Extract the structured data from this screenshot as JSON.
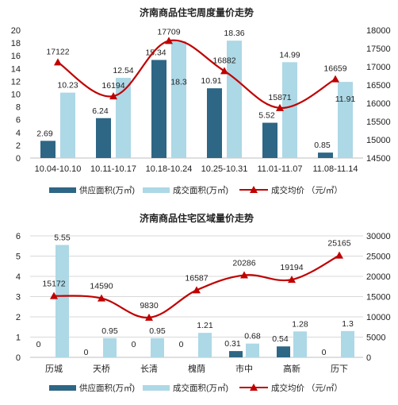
{
  "colors": {
    "supply": "#2e6685",
    "deal": "#add8e6",
    "price": "#c00000",
    "grid": "#d9d9d9"
  },
  "chart_data": [
    {
      "type": "bar",
      "title": "济南商品住宅周度量价走势",
      "categories": [
        "10.04-10.10",
        "10.11-10.17",
        "10.18-10.24",
        "10.25-10.31",
        "11.01-11.07",
        "11.08-11.14"
      ],
      "series": [
        {
          "name": "供应面积(万㎡)",
          "kind": "bar",
          "axis": "left",
          "values": [
            2.69,
            6.24,
            15.34,
            10.91,
            5.52,
            0.85
          ]
        },
        {
          "name": "成交面积(万㎡)",
          "kind": "bar",
          "axis": "left",
          "values": [
            10.23,
            12.54,
            18.3,
            18.36,
            14.99,
            11.91
          ]
        },
        {
          "name": "成交均价 （元/㎡）",
          "kind": "line",
          "axis": "right",
          "values": [
            17122,
            16194,
            17709,
            16882,
            15871,
            16659
          ]
        }
      ],
      "y_left": {
        "min": 0,
        "max": 20,
        "ticks": [
          "0",
          "2",
          "4",
          "6",
          "8",
          "10",
          "12",
          "14",
          "16",
          "18",
          "20"
        ]
      },
      "y_right": {
        "min": 14500,
        "max": 18000,
        "ticks": [
          "14500",
          "15000",
          "15500",
          "16000",
          "16500",
          "17000",
          "17500",
          "18000"
        ]
      },
      "grid": false,
      "legend": "bottom"
    },
    {
      "type": "bar",
      "title": "济南商品住宅区域量价走势",
      "categories": [
        "历城",
        "天桥",
        "长清",
        "槐荫",
        "市中",
        "高新",
        "历下"
      ],
      "series": [
        {
          "name": "供应面积(万㎡)",
          "kind": "bar",
          "axis": "left",
          "values": [
            0,
            0,
            0,
            0,
            0.31,
            0.54,
            0
          ]
        },
        {
          "name": "成交面积(万㎡)",
          "kind": "bar",
          "axis": "left",
          "values": [
            5.55,
            0.95,
            0.95,
            1.21,
            0.68,
            1.28,
            1.3
          ]
        },
        {
          "name": "成交均价 （元/㎡）",
          "kind": "line",
          "axis": "right",
          "values": [
            15172,
            14590,
            9830,
            16587,
            20286,
            19194,
            25165
          ]
        }
      ],
      "y_left": {
        "min": 0,
        "max": 6,
        "ticks": [
          "0",
          "1",
          "2",
          "3",
          "4",
          "5",
          "6"
        ]
      },
      "y_right": {
        "min": 0,
        "max": 30000,
        "ticks": [
          "0",
          "5000",
          "10000",
          "15000",
          "20000",
          "25000",
          "30000"
        ]
      },
      "grid": true,
      "legend": "bottom"
    }
  ]
}
